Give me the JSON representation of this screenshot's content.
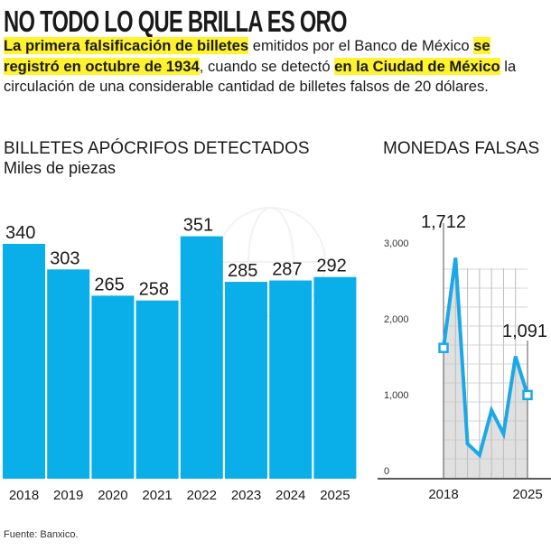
{
  "title": "NO TODO LO QUE BRILLA ES ORO",
  "lead": {
    "hl1": "La primera falsificación de billetes",
    "t1": " emitidos por el Banco de México ",
    "hl2": "se registró en octubre de 1934",
    "t2": ", cuando se detectó ",
    "hl3": "en la Ciudad de México",
    "t3": " la circulación de una considerable cantidad de billetes falsos de 20 dólares."
  },
  "highlight_color": "#fff22e",
  "source": "Fuente: Banxico.",
  "chart_data": [
    {
      "type": "bar",
      "title": "BILLETES APÓCRIFOS DETECTADOS",
      "subtitle": "Miles de piezas",
      "categories": [
        "2018",
        "2019",
        "2020",
        "2021",
        "2022",
        "2023",
        "2024",
        "2025"
      ],
      "values": [
        340,
        303,
        265,
        258,
        351,
        285,
        287,
        292
      ],
      "data_labels": [
        "340",
        "303",
        "265",
        "258",
        "351",
        "285",
        "287",
        "292"
      ],
      "color": "#0aaee8",
      "grid": false
    },
    {
      "type": "area",
      "title": "MONEDAS FALSAS",
      "x": [
        2018,
        2019,
        2020,
        2021,
        2022,
        2023,
        2024,
        2025
      ],
      "values": [
        1712,
        2900,
        450,
        300,
        890,
        580,
        1600,
        1091
      ],
      "x_tick_labels": [
        "2018",
        "2025"
      ],
      "y_ticks": [
        "0",
        "1,000",
        "2,000",
        "3,000"
      ],
      "ylim": [
        0,
        3000
      ],
      "annotations": [
        "1,712",
        "1,091"
      ],
      "line_color": "#1aa9e6",
      "fill_color": "#e0e0e0",
      "grid": true
    }
  ]
}
